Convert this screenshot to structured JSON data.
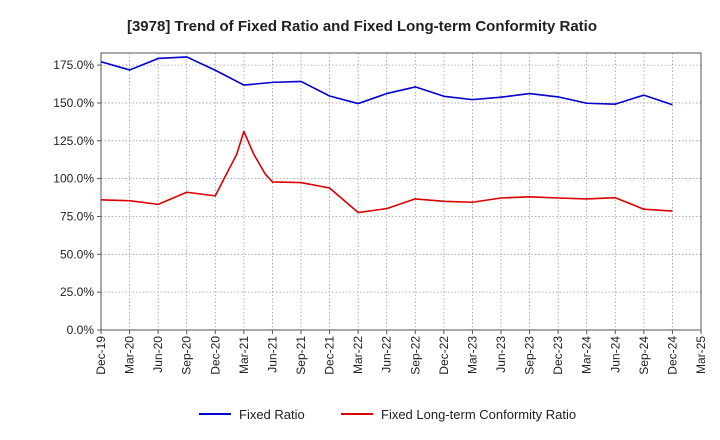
{
  "chart_data": {
    "type": "line",
    "title": "[3978]  Trend of Fixed Ratio and Fixed Long-term Conformity Ratio",
    "xlabel": "",
    "ylabel": "",
    "ylim": [
      0,
      183
    ],
    "y_ticks": [
      0,
      25,
      50,
      75,
      100,
      125,
      150,
      175
    ],
    "y_tick_labels": [
      "0.0%",
      "25.0%",
      "50.0%",
      "75.0%",
      "100.0%",
      "125.0%",
      "150.0%",
      "175.0%"
    ],
    "x_tick_labels": [
      "Dec-19",
      "Mar-20",
      "Jun-20",
      "Sep-20",
      "Dec-20",
      "Mar-21",
      "Jun-21",
      "Sep-21",
      "Dec-21",
      "Mar-22",
      "Jun-22",
      "Sep-22",
      "Dec-22",
      "Mar-23",
      "Jun-23",
      "Sep-23",
      "Dec-23",
      "Mar-24",
      "Jun-24",
      "Sep-24",
      "Dec-24",
      "Mar-25"
    ],
    "grid": true,
    "legend_position": "bottom",
    "series": [
      {
        "name": "Fixed Ratio",
        "color": "#0000cc",
        "points": [
          [
            0,
            177.2
          ],
          [
            1,
            171.8
          ],
          [
            2,
            179.4
          ],
          [
            3,
            180.4
          ],
          [
            4,
            171.6
          ],
          [
            5,
            161.8
          ],
          [
            6,
            163.6
          ],
          [
            7,
            164.2
          ],
          [
            8,
            154.6
          ],
          [
            9,
            149.6
          ],
          [
            10,
            156.2
          ],
          [
            11,
            160.6
          ],
          [
            12,
            154.4
          ],
          [
            13,
            152.2
          ],
          [
            14,
            153.8
          ],
          [
            15,
            156.2
          ],
          [
            16,
            154.0
          ],
          [
            17,
            149.8
          ],
          [
            18,
            149.2
          ],
          [
            19,
            155.2
          ],
          [
            20,
            148.8
          ]
        ]
      },
      {
        "name": "Fixed Long-term Conformity Ratio",
        "color": "#dd0000",
        "points": [
          [
            0,
            86.0
          ],
          [
            1,
            85.4
          ],
          [
            2,
            83.0
          ],
          [
            3,
            91.0
          ],
          [
            4,
            88.6
          ],
          [
            4.35,
            101.6
          ],
          [
            4.75,
            116.0
          ],
          [
            5,
            131.2
          ],
          [
            5.35,
            116.0
          ],
          [
            5.75,
            103.0
          ],
          [
            6,
            97.8
          ],
          [
            7,
            97.4
          ],
          [
            8,
            93.8
          ],
          [
            9,
            77.6
          ],
          [
            10,
            80.2
          ],
          [
            11,
            86.6
          ],
          [
            12,
            85.0
          ],
          [
            13,
            84.4
          ],
          [
            14,
            87.2
          ],
          [
            15,
            88.0
          ],
          [
            16,
            87.2
          ],
          [
            17,
            86.6
          ],
          [
            18,
            87.4
          ],
          [
            19,
            79.8
          ],
          [
            20,
            78.6
          ]
        ]
      }
    ]
  }
}
